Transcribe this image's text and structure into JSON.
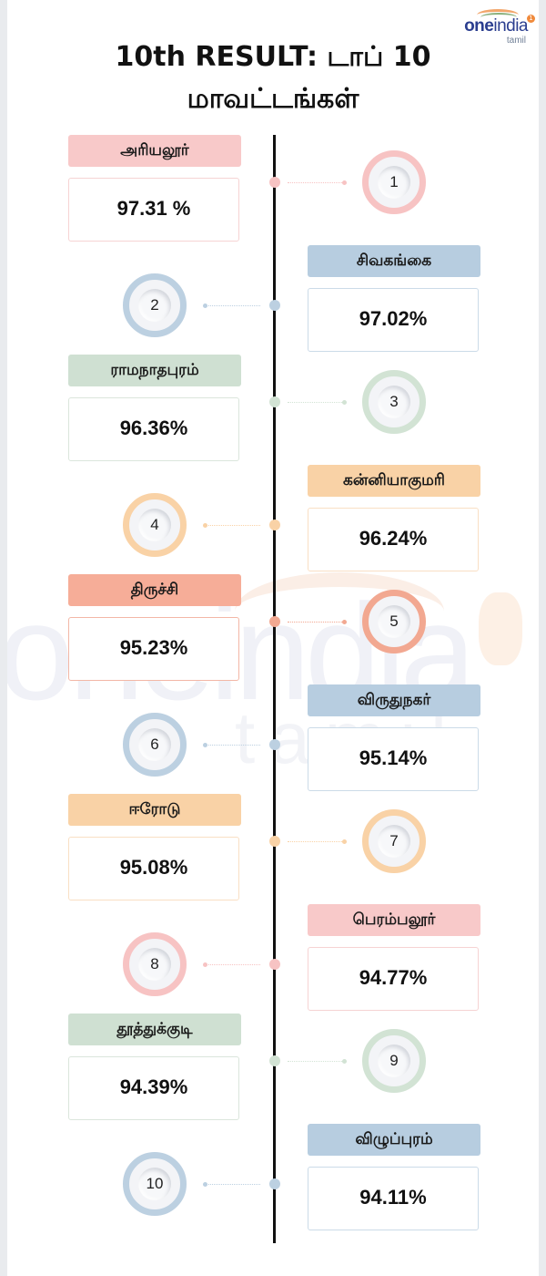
{
  "header": {
    "title_line1": "10th RESULT: டாப் 10",
    "title_line2": "மாவட்டங்கள்",
    "logo": {
      "brand_bold": "one",
      "brand_rest": "india",
      "sub": "tamil",
      "badge": "1"
    }
  },
  "watermark": {
    "text": "oneindia",
    "sub": "tamil"
  },
  "colors": {
    "pink": {
      "label": "#f8c9c9",
      "ring": "#f7c3c3",
      "border": "#f6d3d3"
    },
    "blue": {
      "label": "#b7cde0",
      "ring": "#bcd0e1",
      "border": "#cbdbe8"
    },
    "green": {
      "label": "#cfe0d2",
      "ring": "#d2e3d4",
      "border": "#dbe6dc"
    },
    "orange": {
      "label": "#f9d2a6",
      "ring": "#f9d2a6",
      "border": "#f9dfc4"
    },
    "salmon": {
      "label": "#f6ad98",
      "ring": "#f2a891",
      "border": "#f3b7a6"
    }
  },
  "chart_data": {
    "type": "table",
    "title": "10th RESULT: டாப் 10 மாவட்டங்கள்",
    "columns": [
      "rank",
      "district",
      "pass_percentage"
    ],
    "rows": [
      [
        1,
        "அரியலூர்",
        97.31
      ],
      [
        2,
        "சிவகங்கை",
        97.02
      ],
      [
        3,
        "ராமநாதபுரம்",
        96.36
      ],
      [
        4,
        "கன்னியாகுமரி",
        96.24
      ],
      [
        5,
        "திருச்சி",
        95.23
      ],
      [
        6,
        "விருதுநகர்",
        95.14
      ],
      [
        7,
        "ஈரோடு",
        95.08
      ],
      [
        8,
        "பெரம்பலூர்",
        94.77
      ],
      [
        9,
        "தூத்துக்குடி",
        94.39
      ],
      [
        10,
        "விழுப்புரம்",
        94.11
      ]
    ]
  },
  "items": [
    {
      "rank": "1",
      "district": "அரியலூர்",
      "percent": "97.31 %",
      "side": "left",
      "color": "pink"
    },
    {
      "rank": "2",
      "district": "சிவகங்கை",
      "percent": "97.02%",
      "side": "right",
      "color": "blue"
    },
    {
      "rank": "3",
      "district": "ராமநாதபுரம்",
      "percent": "96.36%",
      "side": "left",
      "color": "green"
    },
    {
      "rank": "4",
      "district": "கன்னியாகுமரி",
      "percent": "96.24%",
      "side": "right",
      "color": "orange"
    },
    {
      "rank": "5",
      "district": "திருச்சி",
      "percent": "95.23%",
      "side": "left",
      "color": "salmon"
    },
    {
      "rank": "6",
      "district": "விருதுநகர்",
      "percent": "95.14%",
      "side": "right",
      "color": "blue"
    },
    {
      "rank": "7",
      "district": "ஈரோடு",
      "percent": "95.08%",
      "side": "left",
      "color": "orange"
    },
    {
      "rank": "8",
      "district": "பெரம்பலூர்",
      "percent": "94.77%",
      "side": "right",
      "color": "pink"
    },
    {
      "rank": "9",
      "district": "தூத்துக்குடி",
      "percent": "94.39%",
      "side": "left",
      "color": "green"
    },
    {
      "rank": "10",
      "district": "விழுப்புரம்",
      "percent": "94.11%",
      "side": "right",
      "color": "blue"
    }
  ]
}
